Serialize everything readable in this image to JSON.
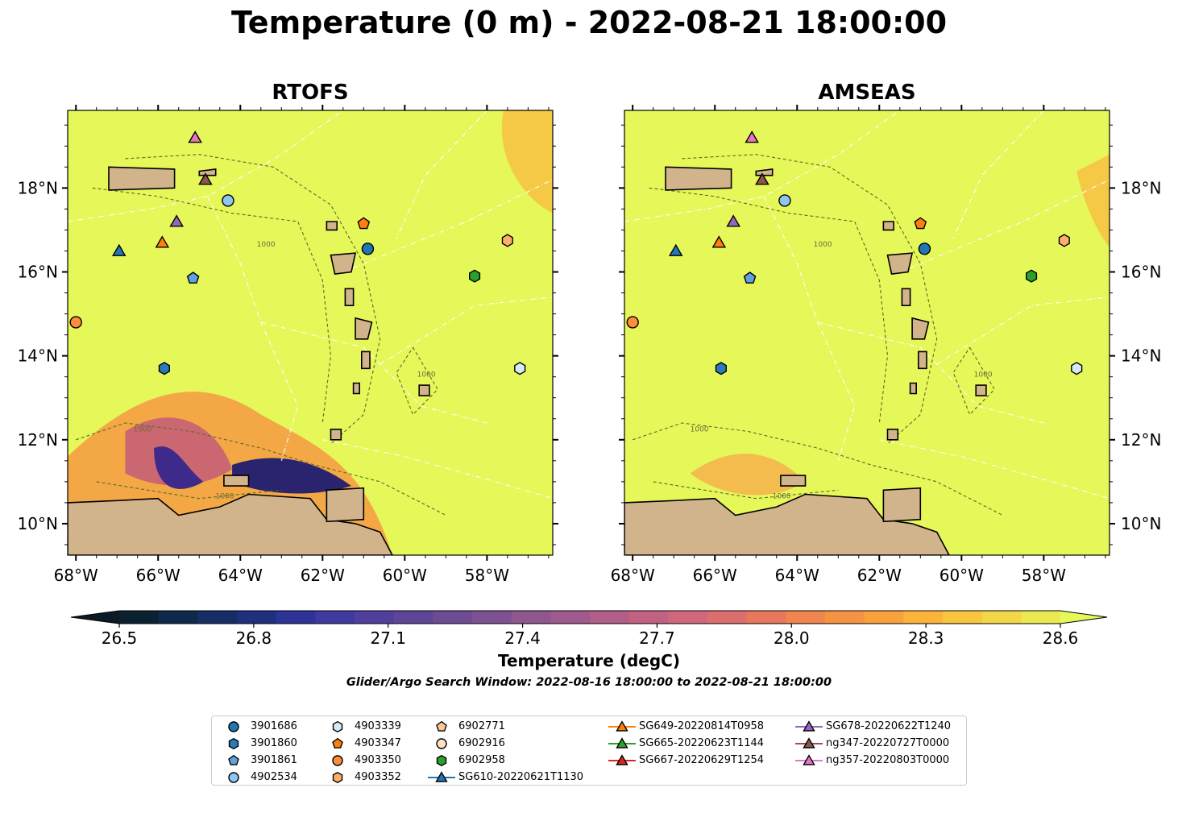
{
  "title": "Temperature (0 m) - 2022-08-21 18:00:00",
  "panels": [
    {
      "title": "RTOFS"
    },
    {
      "title": "AMSEAS"
    }
  ],
  "map": {
    "lon_ticks": [
      "68°W",
      "66°W",
      "64°W",
      "62°W",
      "60°W",
      "58°W"
    ],
    "lat_ticks": [
      "18°N",
      "16°N",
      "14°N",
      "12°N",
      "10°N"
    ],
    "land_color": "#d2b48c",
    "background_color": "#e6f75a",
    "contour_label": "1000"
  },
  "colorbar": {
    "label": "Temperature (degC)",
    "ticks": [
      "26.5",
      "26.8",
      "27.1",
      "27.4",
      "27.7",
      "28.0",
      "28.3",
      "28.6"
    ],
    "colormap": "thermal"
  },
  "search_window": "Glider/Argo Search Window: 2022-08-16 18:00:00 to 2022-08-21 18:00:00",
  "legend": {
    "items": [
      {
        "label": "3901686",
        "marker": "circle",
        "color": "#1f77b4"
      },
      {
        "label": "3901860",
        "marker": "hexagon",
        "color": "#2b7bb9"
      },
      {
        "label": "3901861",
        "marker": "pentagon",
        "color": "#5fa2dd"
      },
      {
        "label": "4902534",
        "marker": "circle",
        "color": "#8ec6ef"
      },
      {
        "label": "4903339",
        "marker": "hexagon",
        "color": "#d4ecfa"
      },
      {
        "label": "4903347",
        "marker": "pentagon",
        "color": "#ff7f0e"
      },
      {
        "label": "4903350",
        "marker": "circle",
        "color": "#fd8d3c"
      },
      {
        "label": "4903352",
        "marker": "hexagon",
        "color": "#fdae6b"
      },
      {
        "label": "6902771",
        "marker": "pentagon",
        "color": "#fdc896"
      },
      {
        "label": "6902916",
        "marker": "circle",
        "color": "#fde0c5"
      },
      {
        "label": "6902958",
        "marker": "hexagon",
        "color": "#2ca02c"
      },
      {
        "label": "SG610-20220621T1130",
        "marker": "triangle",
        "color": "#1f77b4",
        "line": true
      },
      {
        "label": "SG649-20220814T0958",
        "marker": "triangle",
        "color": "#ff7f0e",
        "line": true
      },
      {
        "label": "SG665-20220623T1144",
        "marker": "triangle",
        "color": "#2ca02c",
        "line": true
      },
      {
        "label": "SG667-20220629T1254",
        "marker": "triangle",
        "color": "#d62728",
        "line": true
      },
      {
        "label": "SG678-20220622T1240",
        "marker": "triangle",
        "color": "#9467bd",
        "line": true
      },
      {
        "label": "ng347-20220727T0000",
        "marker": "triangle",
        "color": "#8c564b",
        "line": true
      },
      {
        "label": "ng357-20220803T0000",
        "marker": "triangle",
        "color": "#e377c2",
        "line": true
      }
    ]
  },
  "markers": [
    {
      "id": "3901686",
      "lon": -60.9,
      "lat": 16.55
    },
    {
      "id": "3901860",
      "lon": -65.85,
      "lat": 13.7
    },
    {
      "id": "3901861",
      "lon": -65.15,
      "lat": 15.85
    },
    {
      "id": "4902534",
      "lon": -64.3,
      "lat": 17.7
    },
    {
      "id": "4903339",
      "lon": -57.2,
      "lat": 13.7
    },
    {
      "id": "4903347",
      "lon": -61.0,
      "lat": 17.15
    },
    {
      "id": "4903350",
      "lon": -68.0,
      "lat": 14.8
    },
    {
      "id": "4903352",
      "lon": -57.5,
      "lat": 16.75
    },
    {
      "id": "6902958",
      "lon": -58.3,
      "lat": 15.9
    },
    {
      "id": "SG610-20220621T1130",
      "lon": -66.95,
      "lat": 16.5
    },
    {
      "id": "SG649-20220814T0958",
      "lon": -65.9,
      "lat": 16.7
    },
    {
      "id": "SG678-20220622T1240",
      "lon": -65.55,
      "lat": 17.2
    },
    {
      "id": "ng347-20220727T0000",
      "lon": -64.85,
      "lat": 18.2
    },
    {
      "id": "ng357-20220803T0000",
      "lon": -65.1,
      "lat": 19.2
    }
  ]
}
